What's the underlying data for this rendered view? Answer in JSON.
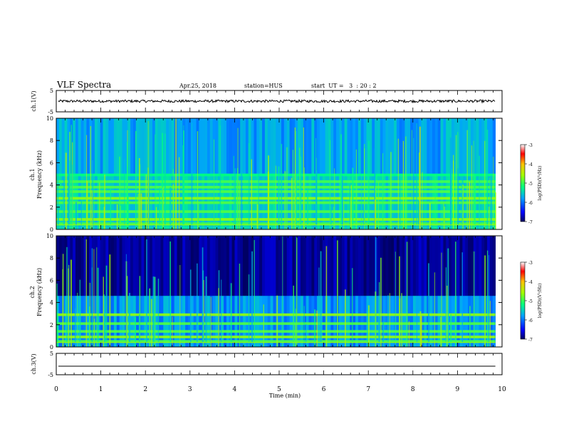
{
  "header": {
    "title": "VLF Spectra",
    "date": "Apr.25, 2018",
    "station": "station=HUS",
    "start": "start  UT =   3  : 20 : 2"
  },
  "chart_data": [
    {
      "type": "line",
      "panel": "ch1-waveform",
      "ylabel": "ch.1(V)",
      "ylim": [
        -5,
        5
      ],
      "yticks": [
        5,
        -5
      ],
      "xlim": [
        0,
        10
      ],
      "series": [
        {
          "x": [
            0,
            9.85
          ],
          "y": [
            0,
            0
          ]
        }
      ]
    },
    {
      "type": "heatmap",
      "panel": "ch1-spectrogram",
      "ylabel": "ch.1\nFrequency (kHz)",
      "ylim": [
        0,
        10
      ],
      "yticks": [
        0,
        2,
        4,
        6,
        8,
        10
      ],
      "xlim": [
        0,
        10
      ],
      "data_end_min": 9.85,
      "colorbar": {
        "label": "log(PSD)(V²/Hz)",
        "range": [
          -7,
          -3
        ],
        "ticks": [
          -3,
          -4,
          -5,
          -6,
          -7
        ]
      },
      "bands_khz": [
        0.5,
        0.9,
        1.6,
        2.4,
        2.8,
        3.4,
        3.8,
        4.3,
        4.9
      ],
      "background_level": -6.2
    },
    {
      "type": "heatmap",
      "panel": "ch2-spectrogram",
      "ylabel": "ch.2\nFrequency (kHz)",
      "ylim": [
        0,
        10
      ],
      "yticks": [
        0,
        2,
        4,
        6,
        8,
        10
      ],
      "xlim": [
        0,
        10
      ],
      "data_end_min": 9.85,
      "colorbar": {
        "label": "log(PSD)(V²/Hz)",
        "range": [
          -7,
          -3
        ],
        "ticks": [
          -3,
          -4,
          -5,
          -6,
          -7
        ]
      },
      "bands_khz": [
        0.5,
        0.9,
        1.4,
        2.1,
        2.9
      ],
      "background_level": -7
    },
    {
      "type": "line",
      "panel": "ch3-waveform",
      "ylabel": "ch.3(V)",
      "ylim": [
        -5,
        5
      ],
      "yticks": [
        5,
        -5
      ],
      "xlim": [
        0,
        10
      ],
      "xlabel": "Time (min)",
      "xticks": [
        0,
        1,
        2,
        3,
        4,
        5,
        6,
        7,
        8,
        9,
        10
      ],
      "series": [
        {
          "x": [
            0,
            9.85
          ],
          "y": [
            -1,
            -1
          ]
        }
      ]
    }
  ]
}
